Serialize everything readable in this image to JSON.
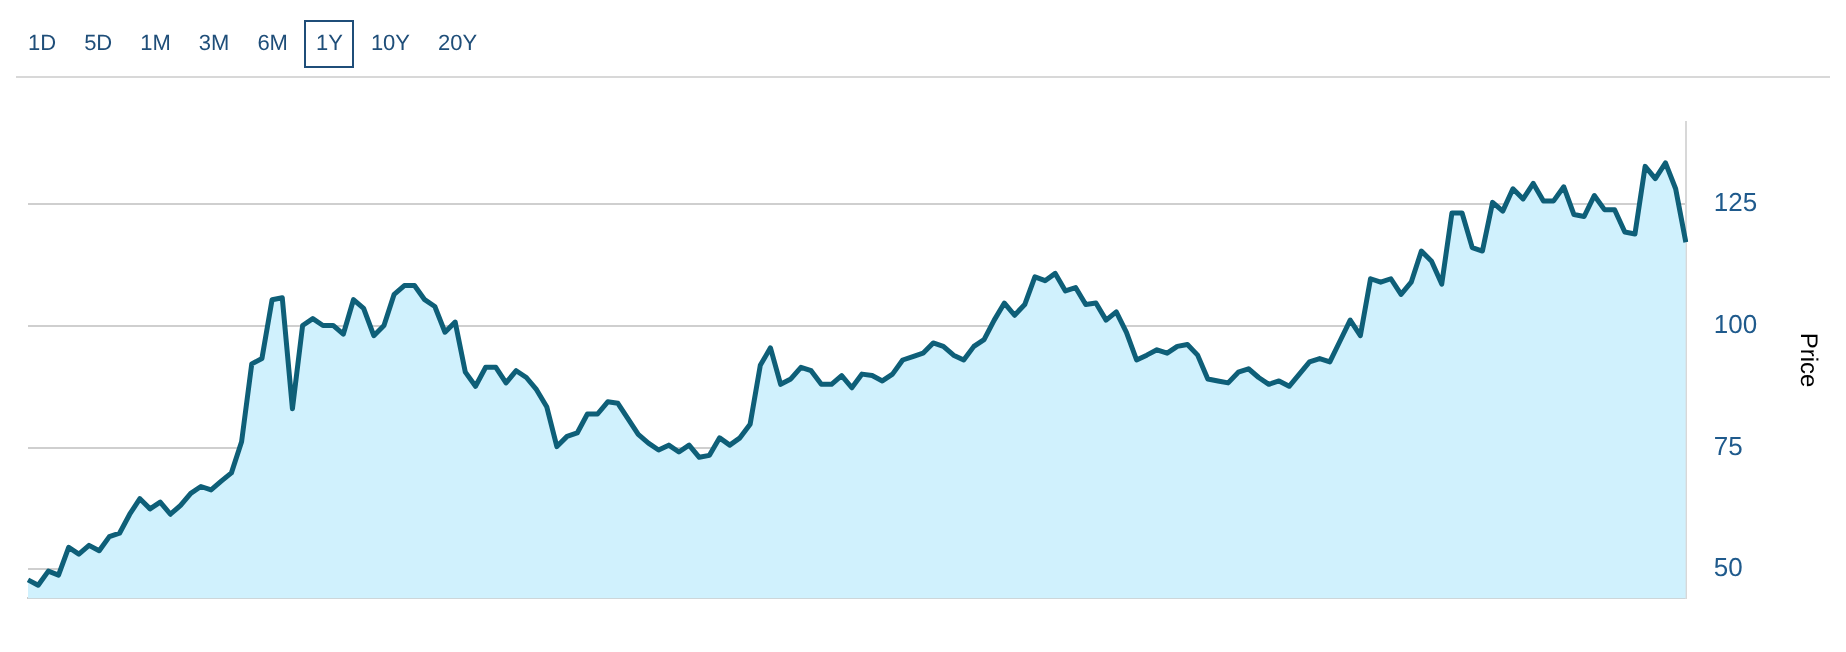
{
  "chart_data": {
    "type": "area",
    "ylabel": "Price",
    "annotations": [
      "1D",
      "5D",
      "1M",
      "3M",
      "6M",
      "1Y",
      "10Y",
      "20Y"
    ],
    "categories": [
      null,
      null,
      null,
      null,
      null,
      null,
      null,
      null,
      null,
      null,
      null,
      null,
      null,
      null,
      null,
      null,
      null,
      null,
      null,
      null,
      null,
      null,
      null,
      null,
      null,
      null,
      null,
      null,
      null,
      null,
      null,
      null,
      null,
      null,
      null,
      null,
      null,
      null,
      null,
      null,
      null,
      null,
      null,
      null,
      null,
      null,
      null,
      null,
      null,
      null,
      null,
      null,
      null,
      null,
      null,
      null,
      null,
      null,
      null,
      null,
      null,
      null,
      null,
      null,
      null,
      null,
      null,
      null,
      null,
      null,
      null,
      null,
      null,
      null,
      null,
      null,
      null,
      null,
      null,
      null,
      null,
      null,
      null,
      null,
      null,
      null,
      null,
      null,
      null,
      null,
      null,
      null,
      null,
      null,
      null,
      null,
      null,
      null,
      null,
      null,
      null,
      null,
      null,
      null,
      null,
      null,
      null,
      null,
      null,
      null,
      null,
      null,
      null,
      null,
      null,
      null,
      null,
      null,
      null,
      null,
      null,
      null,
      null,
      null,
      null,
      null,
      null,
      null,
      null,
      null,
      null,
      null,
      null,
      null,
      null,
      null,
      null,
      null,
      null,
      null,
      null,
      null,
      null,
      null,
      null,
      null,
      null,
      null,
      null,
      null,
      null,
      null,
      null,
      null,
      null,
      null,
      null,
      null,
      null,
      null,
      null,
      null,
      null,
      null
    ],
    "ylim": [
      44,
      142
    ],
    "yticks": [
      50,
      75,
      100,
      125
    ],
    "grid": "y",
    "tick_labels": "y",
    "marker": "none",
    "legend": false,
    "series": [
      {
        "color": "#0e5f78",
        "values": [
          47.8,
          46.7,
          49.6,
          48.8,
          54.5,
          53.1,
          54.9,
          53.8,
          56.7,
          57.4,
          61.3,
          64.5,
          62.4,
          63.8,
          61.3,
          63.1,
          65.6,
          67.0,
          66.3,
          68.1,
          69.8,
          76.2,
          92.2,
          93.3,
          105.4,
          105.8,
          83.0,
          100.1,
          101.5,
          100.1,
          100.1,
          98.3,
          105.4,
          103.6,
          98.0,
          100.1,
          106.5,
          108.3,
          108.3,
          105.4,
          104.0,
          98.7,
          100.8,
          90.5,
          87.6,
          91.5,
          91.5,
          88.3,
          90.8,
          89.4,
          86.9,
          83.4,
          75.2,
          77.3,
          78.0,
          81.9,
          81.9,
          84.4,
          84.1,
          80.9,
          77.7,
          75.9,
          74.5,
          75.5,
          74.1,
          75.5,
          73.0,
          73.4,
          77.0,
          75.5,
          77.0,
          79.8,
          91.9,
          95.5,
          88.0,
          89.1,
          91.5,
          90.8,
          88.0,
          88.0,
          89.8,
          87.3,
          90.1,
          89.8,
          88.7,
          90.1,
          93.0,
          93.7,
          94.4,
          96.5,
          95.8,
          94.0,
          93.0,
          95.8,
          97.2,
          101.2,
          104.7,
          102.2,
          104.4,
          110.1,
          109.3,
          110.8,
          107.2,
          107.9,
          104.4,
          104.7,
          101.2,
          102.9,
          98.7,
          93.0,
          94.0,
          95.1,
          94.4,
          95.8,
          96.2,
          94.0,
          89.1,
          88.7,
          88.3,
          90.5,
          91.2,
          89.4,
          88.0,
          88.7,
          87.6,
          90.1,
          92.6,
          93.3,
          92.6,
          96.9,
          101.2,
          98.0,
          109.7,
          109.0,
          109.7,
          106.5,
          109.0,
          115.4,
          113.3,
          108.6,
          123.2,
          123.2,
          116.1,
          115.4,
          125.4,
          123.6,
          128.2,
          126.1,
          129.3,
          125.7,
          125.7,
          128.6,
          122.9,
          122.5,
          126.8,
          123.9,
          123.9,
          119.3,
          118.9,
          132.8,
          130.3,
          133.5,
          128.2,
          117.2
        ]
      }
    ]
  }
}
